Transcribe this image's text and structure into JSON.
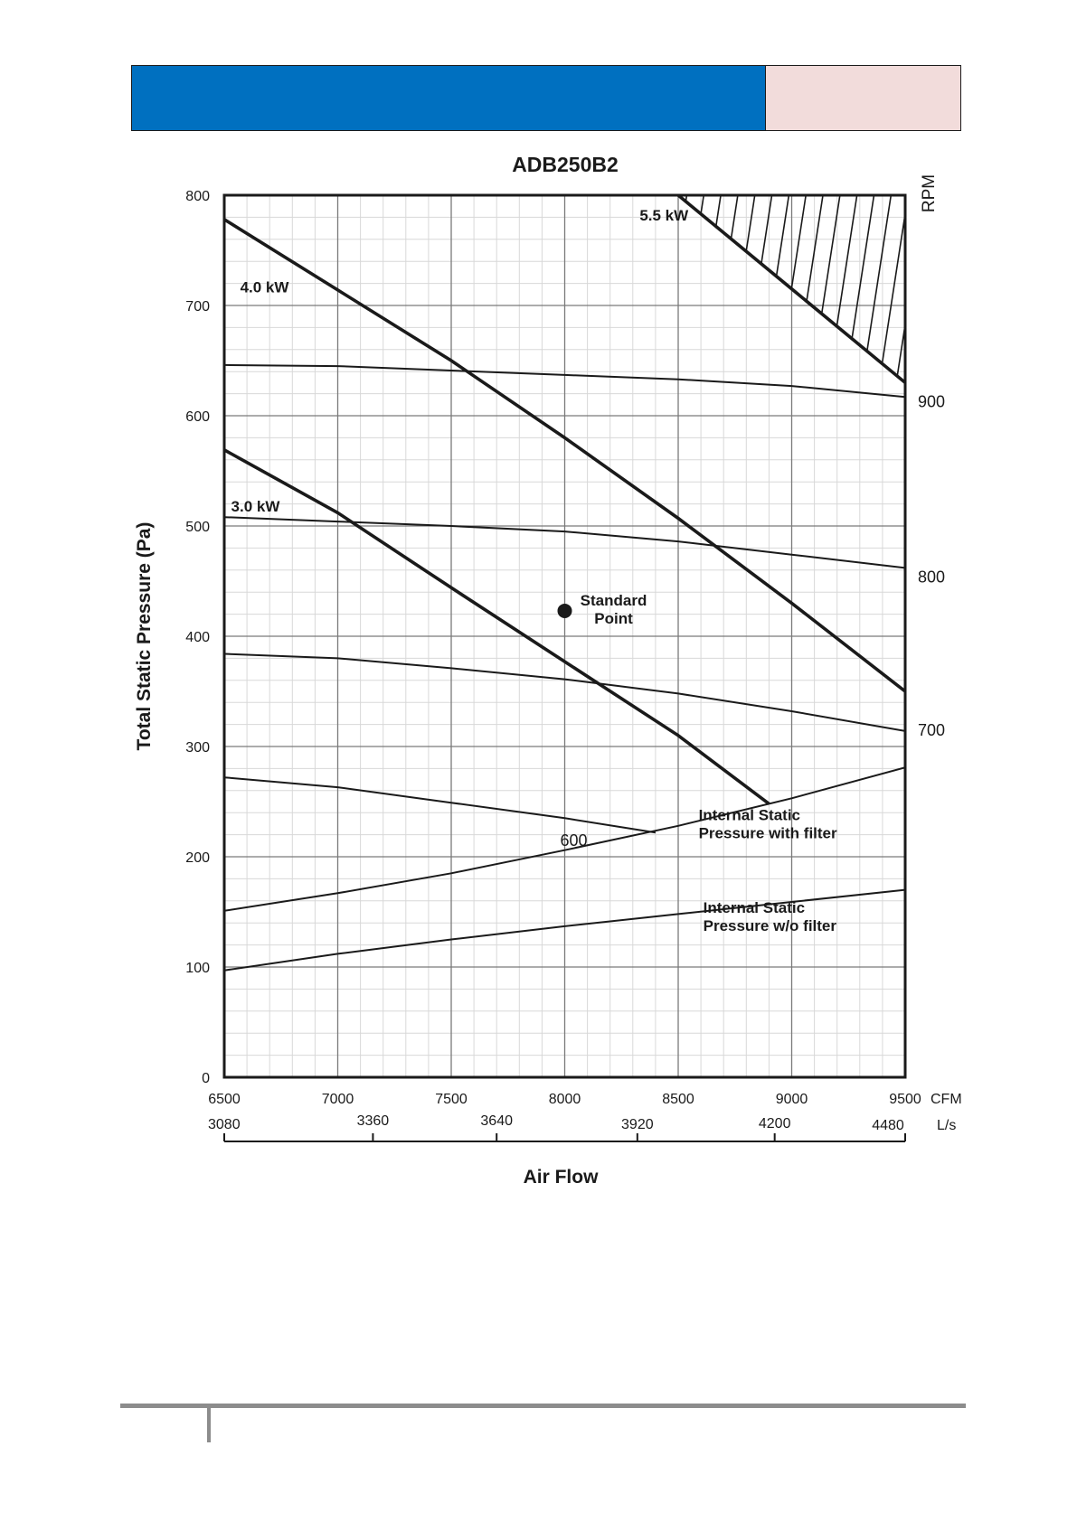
{
  "chart_data": {
    "type": "line",
    "title": "ADB250B2",
    "xlabel": "Air Flow",
    "ylabel": "Total Static Pressure (Pa)",
    "y2label": "RPM",
    "xlim": [
      6500,
      9500
    ],
    "ylim": [
      0,
      800
    ],
    "x_ticks": [
      6500,
      7000,
      7500,
      8000,
      8500,
      9000,
      9500
    ],
    "x_unit": "CFM",
    "y_ticks": [
      0,
      100,
      200,
      300,
      400,
      500,
      600,
      700,
      800
    ],
    "ls_ticks": [
      {
        "label": "3080",
        "cfm": 6500
      },
      {
        "label": "3360",
        "cfm": 7155
      },
      {
        "label": "3640",
        "cfm": 7700
      },
      {
        "label": "3920",
        "cfm": 8320
      },
      {
        "label": "4200",
        "cfm": 8925
      },
      {
        "label": "4480",
        "cfm": 9500
      }
    ],
    "ls_unit": "L/s",
    "rpm_curves": [
      {
        "name": "600",
        "label": "600",
        "x": [
          6500,
          7000,
          7500,
          8000,
          8400
        ],
        "y": [
          272,
          263,
          249,
          235,
          222
        ]
      },
      {
        "name": "700",
        "label": "700",
        "x": [
          6500,
          7000,
          7500,
          8000,
          8500,
          9000,
          9500
        ],
        "y": [
          384,
          380,
          371,
          361,
          348,
          332,
          314
        ]
      },
      {
        "name": "800",
        "label": "800",
        "x": [
          6500,
          7000,
          7500,
          8000,
          8500,
          9000,
          9500
        ],
        "y": [
          508,
          504,
          500,
          495,
          486,
          474,
          462
        ]
      },
      {
        "name": "900",
        "label": "900",
        "x": [
          6500,
          7000,
          7500,
          8000,
          8500,
          9000,
          9500
        ],
        "y": [
          646,
          645,
          641,
          637,
          633,
          627,
          617
        ]
      }
    ],
    "power_curves": [
      {
        "name": "3.0 kW",
        "x": [
          6500,
          7000,
          7500,
          8000,
          8500,
          8900
        ],
        "y": [
          569,
          512,
          444,
          377,
          310,
          248
        ]
      },
      {
        "name": "4.0 kW",
        "x": [
          6500,
          7000,
          7500,
          8000,
          8500,
          9000,
          9500
        ],
        "y": [
          778,
          714,
          650,
          580,
          507,
          430,
          350
        ]
      },
      {
        "name": "5.5 kW",
        "x": [
          8500,
          9000,
          9500
        ],
        "y": [
          800,
          715,
          630
        ]
      }
    ],
    "system_curves": [
      {
        "name": "Internal Static Pressure with filter",
        "label_lines": [
          "Internal Static",
          "Pressure with filter"
        ],
        "x": [
          6500,
          7000,
          7500,
          8000,
          8500,
          9000,
          9500
        ],
        "y": [
          151,
          167,
          185,
          206,
          228,
          253,
          281
        ]
      },
      {
        "name": "Internal Static Pressure w/o filter",
        "label_lines": [
          "Internal Static",
          "Pressure w/o filter"
        ],
        "x": [
          6500,
          7000,
          7500,
          8000,
          8500,
          9000,
          9500
        ],
        "y": [
          97,
          112,
          125,
          137,
          148,
          159,
          170
        ]
      }
    ],
    "standard_point": {
      "label_lines": [
        "Standard",
        "Point"
      ],
      "x": 8000,
      "y": 423
    },
    "hatched_region": "above 5.5 kW line, top-right corner"
  }
}
